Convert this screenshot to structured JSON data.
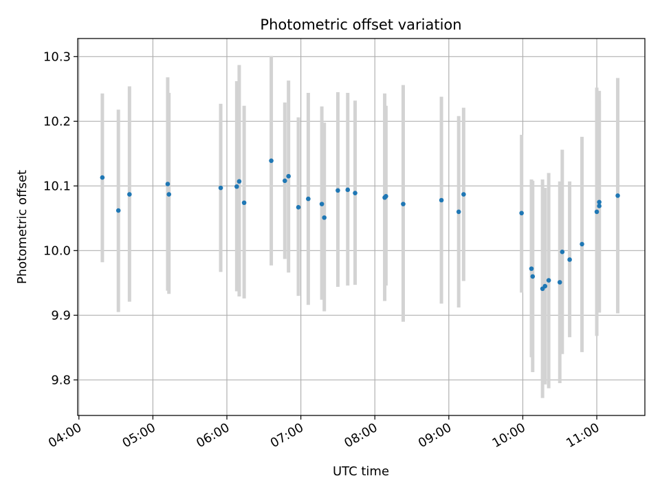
{
  "chart_data": {
    "type": "scatter",
    "title": "Photometric offset variation",
    "xlabel": "UTC time",
    "ylabel": "Photometric offset",
    "x_format": "HH:MM",
    "xlim": [
      "03:59",
      "11:39"
    ],
    "ylim": [
      9.745,
      10.328
    ],
    "x_ticks": [
      "04:00",
      "05:00",
      "06:00",
      "07:00",
      "08:00",
      "09:00",
      "10:00",
      "11:00"
    ],
    "y_ticks": [
      "9.8",
      "9.9",
      "10.0",
      "10.1",
      "10.2",
      "10.3"
    ],
    "y_tick_values": [
      9.8,
      9.9,
      10.0,
      10.1,
      10.2,
      10.3
    ],
    "grid": true,
    "marker_color": "#1f77b4",
    "errorbar_color": "#d3d3d3",
    "points": [
      {
        "x": "04:19",
        "y": 10.113,
        "ylow": 9.982,
        "yhigh": 10.243
      },
      {
        "x": "04:32",
        "y": 10.062,
        "ylow": 9.905,
        "yhigh": 10.218
      },
      {
        "x": "04:41",
        "y": 10.087,
        "ylow": 9.921,
        "yhigh": 10.254
      },
      {
        "x": "05:12",
        "y": 10.103,
        "ylow": 9.938,
        "yhigh": 10.268
      },
      {
        "x": "05:13",
        "y": 10.087,
        "ylow": 9.933,
        "yhigh": 10.244
      },
      {
        "x": "05:55",
        "y": 10.097,
        "ylow": 9.967,
        "yhigh": 10.227
      },
      {
        "x": "06:08",
        "y": 10.099,
        "ylow": 9.937,
        "yhigh": 10.262
      },
      {
        "x": "06:10",
        "y": 10.107,
        "ylow": 9.929,
        "yhigh": 10.287
      },
      {
        "x": "06:14",
        "y": 10.074,
        "ylow": 9.926,
        "yhigh": 10.224
      },
      {
        "x": "06:36",
        "y": 10.139,
        "ylow": 9.977,
        "yhigh": 10.301
      },
      {
        "x": "06:47",
        "y": 10.108,
        "ylow": 9.987,
        "yhigh": 10.229
      },
      {
        "x": "06:50",
        "y": 10.115,
        "ylow": 9.966,
        "yhigh": 10.263
      },
      {
        "x": "06:58",
        "y": 10.067,
        "ylow": 9.93,
        "yhigh": 10.206
      },
      {
        "x": "07:06",
        "y": 10.08,
        "ylow": 9.916,
        "yhigh": 10.244
      },
      {
        "x": "07:17",
        "y": 10.072,
        "ylow": 9.924,
        "yhigh": 10.223
      },
      {
        "x": "07:19",
        "y": 10.051,
        "ylow": 9.906,
        "yhigh": 10.198
      },
      {
        "x": "07:30",
        "y": 10.093,
        "ylow": 9.944,
        "yhigh": 10.245
      },
      {
        "x": "07:38",
        "y": 10.094,
        "ylow": 9.946,
        "yhigh": 10.244
      },
      {
        "x": "07:44",
        "y": 10.089,
        "ylow": 9.947,
        "yhigh": 10.232
      },
      {
        "x": "08:08",
        "y": 10.082,
        "ylow": 9.922,
        "yhigh": 10.243
      },
      {
        "x": "08:09",
        "y": 10.084,
        "ylow": 9.946,
        "yhigh": 10.224
      },
      {
        "x": "08:23",
        "y": 10.072,
        "ylow": 9.89,
        "yhigh": 10.256
      },
      {
        "x": "08:54",
        "y": 10.078,
        "ylow": 9.918,
        "yhigh": 10.238
      },
      {
        "x": "09:08",
        "y": 10.06,
        "ylow": 9.912,
        "yhigh": 10.208
      },
      {
        "x": "09:12",
        "y": 10.087,
        "ylow": 9.953,
        "yhigh": 10.221
      },
      {
        "x": "09:59",
        "y": 10.058,
        "ylow": 9.935,
        "yhigh": 10.179
      },
      {
        "x": "10:07",
        "y": 9.972,
        "ylow": 9.835,
        "yhigh": 10.11
      },
      {
        "x": "10:08",
        "y": 9.96,
        "ylow": 9.812,
        "yhigh": 10.108
      },
      {
        "x": "10:16",
        "y": 9.941,
        "ylow": 9.772,
        "yhigh": 10.11
      },
      {
        "x": "10:18",
        "y": 9.945,
        "ylow": 9.793,
        "yhigh": 10.097
      },
      {
        "x": "10:21",
        "y": 9.954,
        "ylow": 9.787,
        "yhigh": 10.12
      },
      {
        "x": "10:30",
        "y": 9.951,
        "ylow": 9.795,
        "yhigh": 10.107
      },
      {
        "x": "10:32",
        "y": 9.998,
        "ylow": 9.84,
        "yhigh": 10.156
      },
      {
        "x": "10:38",
        "y": 9.986,
        "ylow": 9.866,
        "yhigh": 10.107
      },
      {
        "x": "10:48",
        "y": 10.01,
        "ylow": 9.843,
        "yhigh": 10.176
      },
      {
        "x": "11:00",
        "y": 10.06,
        "ylow": 9.868,
        "yhigh": 10.252
      },
      {
        "x": "11:02",
        "y": 10.069,
        "ylow": 9.905,
        "yhigh": 10.232
      },
      {
        "x": "11:02",
        "y": 10.075,
        "ylow": 9.904,
        "yhigh": 10.247
      },
      {
        "x": "11:17",
        "y": 10.085,
        "ylow": 9.903,
        "yhigh": 10.267
      }
    ]
  }
}
